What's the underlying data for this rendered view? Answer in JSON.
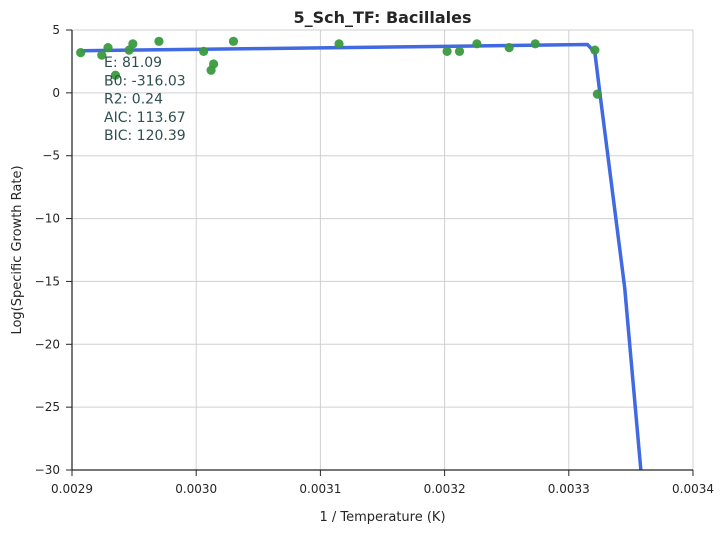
{
  "chart_data": {
    "type": "scatter",
    "title": "5_Sch_TF: Bacillales",
    "xlabel": "1 / Temperature (K)",
    "ylabel": "Log(Specific Growth Rate)",
    "xlim": [
      0.0029,
      0.0034
    ],
    "ylim": [
      -30,
      5
    ],
    "xticks": [
      "0.0029",
      "0.0030",
      "0.0031",
      "0.0032",
      "0.0033",
      "0.0034"
    ],
    "yticks": [
      "5",
      "0",
      "−5",
      "−10",
      "−15",
      "−20",
      "−25",
      "−30"
    ],
    "xtick_values": [
      0.0029,
      0.003,
      0.0031,
      0.0032,
      0.0033,
      0.0034
    ],
    "ytick_values": [
      5,
      0,
      -5,
      -10,
      -15,
      -20,
      -25,
      -30
    ],
    "grid": true,
    "colors": {
      "points": "#3a9a3f",
      "fit": "#4169e1",
      "annotation": "#2f4f4f"
    },
    "series": [
      {
        "type": "scatter",
        "x": [
          0.002907,
          0.002924,
          0.002929,
          0.002935,
          0.002946,
          0.002949,
          0.00297,
          0.003006,
          0.003012,
          0.003014,
          0.00303,
          0.003115,
          0.003202,
          0.003212,
          0.003226,
          0.003252,
          0.003273,
          0.003321,
          0.003323
        ],
        "y": [
          3.2,
          3.0,
          3.6,
          1.4,
          3.4,
          3.9,
          4.1,
          3.3,
          1.8,
          2.3,
          4.1,
          3.9,
          3.3,
          3.3,
          3.9,
          3.6,
          3.9,
          3.4,
          -0.1
        ]
      },
      {
        "type": "line",
        "x": [
          0.002907,
          0.00305,
          0.0032,
          0.003315,
          0.003321,
          0.003325,
          0.003345,
          0.003358
        ],
        "y": [
          3.35,
          3.52,
          3.7,
          3.85,
          3.2,
          0.0,
          -15.5,
          -30
        ]
      }
    ],
    "annotations": [
      "E:  81.09",
      "B0:  -316.03",
      "R2:  0.24",
      "AIC: 113.67",
      "BIC: 120.39"
    ]
  }
}
